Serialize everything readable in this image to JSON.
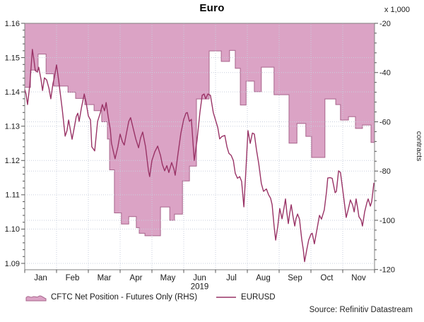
{
  "title": "Euro",
  "source": "Source: Refinitiv Datastream",
  "legend": {
    "area_label": "CFTC Net Position - Futures Only (RHS)",
    "line_label": "EURUSD"
  },
  "colors": {
    "area_fill": "#dba3c5",
    "area_edge": "#a8648c",
    "line": "#993366",
    "grid": "#c9cfdd",
    "axis": "#808080",
    "tick": "#555555",
    "text": "#1a1a1a"
  },
  "axes": {
    "x": {
      "months": [
        "Jan",
        "Feb",
        "Mar",
        "Apr",
        "May",
        "Jun",
        "Jul",
        "Aug",
        "Sep",
        "Oct",
        "Nov"
      ],
      "year": "2019"
    },
    "y_left": {
      "ticks": [
        1.09,
        1.1,
        1.11,
        1.12,
        1.13,
        1.14,
        1.15,
        1.16
      ],
      "min": 1.088,
      "max": 1.16
    },
    "y_right": {
      "unit_label": "x 1,000",
      "axis_label": "contracts",
      "ticks": [
        -20,
        -40,
        -60,
        -80,
        -100,
        -120
      ],
      "min": -120.3,
      "max": -20
    }
  },
  "chart_data": {
    "type": "combo",
    "title": "Euro",
    "x_unit": "months since 2019-01-01 (0 = Jan 1, 11 = Dec 1)",
    "grid": true,
    "legend_position": "bottom",
    "series": [
      {
        "name": "CFTC Net Position - Futures Only (RHS)",
        "type": "area-step",
        "axis": "right",
        "unit": "x 1,000 contracts",
        "interpolation": "step-after",
        "points": [
          [
            0.0,
            -46
          ],
          [
            0.18,
            -39
          ],
          [
            0.42,
            -32.5
          ],
          [
            0.67,
            -40.5
          ],
          [
            0.91,
            -45.5
          ],
          [
            1.36,
            -48
          ],
          [
            1.6,
            -50.5
          ],
          [
            1.89,
            -53
          ],
          [
            2.18,
            -55.5
          ],
          [
            2.42,
            -60
          ],
          [
            2.6,
            -67
          ],
          [
            2.67,
            -79.5
          ],
          [
            2.82,
            -97
          ],
          [
            3.04,
            -101.5
          ],
          [
            3.27,
            -98.5
          ],
          [
            3.51,
            -103
          ],
          [
            3.6,
            -105.3
          ],
          [
            3.78,
            -106.3
          ],
          [
            4.27,
            -94.6
          ],
          [
            4.56,
            -100
          ],
          [
            4.71,
            -97.5
          ],
          [
            4.96,
            -84
          ],
          [
            5.18,
            -78
          ],
          [
            5.4,
            -50.7
          ],
          [
            5.8,
            -31.2
          ],
          [
            6.18,
            -35.5
          ],
          [
            6.44,
            -31
          ],
          [
            6.62,
            -38.3
          ],
          [
            6.78,
            -53.2
          ],
          [
            6.96,
            -43.5
          ],
          [
            7.22,
            -47.8
          ],
          [
            7.44,
            -37.8
          ],
          [
            7.84,
            -49
          ],
          [
            8.31,
            -68.7
          ],
          [
            8.56,
            -60.7
          ],
          [
            8.84,
            -65.9
          ],
          [
            9.02,
            -74.5
          ],
          [
            9.44,
            -50.7
          ],
          [
            9.78,
            -53
          ],
          [
            9.93,
            -59.3
          ],
          [
            10.18,
            -57.9
          ],
          [
            10.4,
            -62.7
          ],
          [
            10.62,
            -61.3
          ],
          [
            10.89,
            -68.4
          ]
        ]
      },
      {
        "name": "EURUSD",
        "type": "line",
        "axis": "left",
        "points": [
          [
            0.0,
            1.1407
          ],
          [
            0.04,
            1.1394
          ],
          [
            0.09,
            1.1363
          ],
          [
            0.16,
            1.1421
          ],
          [
            0.2,
            1.1472
          ],
          [
            0.24,
            1.1524
          ],
          [
            0.29,
            1.1493
          ],
          [
            0.33,
            1.1462
          ],
          [
            0.4,
            1.1458
          ],
          [
            0.44,
            1.1472
          ],
          [
            0.51,
            1.1437
          ],
          [
            0.56,
            1.1404
          ],
          [
            0.62,
            1.1441
          ],
          [
            0.69,
            1.1435
          ],
          [
            0.76,
            1.1411
          ],
          [
            0.82,
            1.138
          ],
          [
            0.89,
            1.1425
          ],
          [
            0.93,
            1.1441
          ],
          [
            1.0,
            1.1479
          ],
          [
            1.07,
            1.1431
          ],
          [
            1.11,
            1.14
          ],
          [
            1.18,
            1.1349
          ],
          [
            1.27,
            1.1271
          ],
          [
            1.33,
            1.1287
          ],
          [
            1.38,
            1.1318
          ],
          [
            1.44,
            1.1287
          ],
          [
            1.49,
            1.1262
          ],
          [
            1.56,
            1.1297
          ],
          [
            1.62,
            1.1328
          ],
          [
            1.67,
            1.1338
          ],
          [
            1.71,
            1.1314
          ],
          [
            1.78,
            1.1352
          ],
          [
            1.87,
            1.1394
          ],
          [
            1.93,
            1.137
          ],
          [
            2.0,
            1.133
          ],
          [
            2.07,
            1.1318
          ],
          [
            2.11,
            1.124
          ],
          [
            2.2,
            1.1228
          ],
          [
            2.29,
            1.1314
          ],
          [
            2.38,
            1.134
          ],
          [
            2.44,
            1.1363
          ],
          [
            2.51,
            1.1345
          ],
          [
            2.56,
            1.1369
          ],
          [
            2.62,
            1.133
          ],
          [
            2.69,
            1.129
          ],
          [
            2.73,
            1.125
          ],
          [
            2.84,
            1.1205
          ],
          [
            2.93,
            1.124
          ],
          [
            3.0,
            1.1277
          ],
          [
            3.07,
            1.1255
          ],
          [
            3.13,
            1.1245
          ],
          [
            3.2,
            1.128
          ],
          [
            3.27,
            1.1314
          ],
          [
            3.33,
            1.1325
          ],
          [
            3.42,
            1.129
          ],
          [
            3.49,
            1.1263
          ],
          [
            3.58,
            1.1237
          ],
          [
            3.64,
            1.1265
          ],
          [
            3.71,
            1.1283
          ],
          [
            3.8,
            1.124
          ],
          [
            3.89,
            1.117
          ],
          [
            3.93,
            1.1153
          ],
          [
            4.0,
            1.12
          ],
          [
            4.09,
            1.1225
          ],
          [
            4.18,
            1.1242
          ],
          [
            4.27,
            1.1215
          ],
          [
            4.33,
            1.1188
          ],
          [
            4.4,
            1.117
          ],
          [
            4.47,
            1.1185
          ],
          [
            4.53,
            1.1165
          ],
          [
            4.62,
            1.1194
          ],
          [
            4.69,
            1.1175
          ],
          [
            4.73,
            1.1157
          ],
          [
            4.82,
            1.122
          ],
          [
            4.91,
            1.128
          ],
          [
            5.0,
            1.132
          ],
          [
            5.07,
            1.1338
          ],
          [
            5.11,
            1.134
          ],
          [
            5.18,
            1.1314
          ],
          [
            5.24,
            1.132
          ],
          [
            5.33,
            1.12
          ],
          [
            5.42,
            1.126
          ],
          [
            5.51,
            1.134
          ],
          [
            5.58,
            1.139
          ],
          [
            5.64,
            1.1394
          ],
          [
            5.69,
            1.138
          ],
          [
            5.76,
            1.1394
          ],
          [
            5.84,
            1.139
          ],
          [
            5.93,
            1.134
          ],
          [
            6.0,
            1.1318
          ],
          [
            6.07,
            1.1296
          ],
          [
            6.13,
            1.1263
          ],
          [
            6.2,
            1.127
          ],
          [
            6.29,
            1.1273
          ],
          [
            6.36,
            1.124
          ],
          [
            6.42,
            1.1221
          ],
          [
            6.49,
            1.1215
          ],
          [
            6.56,
            1.12
          ],
          [
            6.62,
            1.1163
          ],
          [
            6.69,
            1.1148
          ],
          [
            6.76,
            1.1153
          ],
          [
            6.82,
            1.1139
          ],
          [
            6.89,
            1.1065
          ],
          [
            6.96,
            1.118
          ],
          [
            7.02,
            1.1287
          ],
          [
            7.09,
            1.125
          ],
          [
            7.16,
            1.128
          ],
          [
            7.22,
            1.1277
          ],
          [
            7.29,
            1.1229
          ],
          [
            7.36,
            1.119
          ],
          [
            7.44,
            1.1133
          ],
          [
            7.51,
            1.111
          ],
          [
            7.6,
            1.1117
          ],
          [
            7.67,
            1.11
          ],
          [
            7.73,
            1.109
          ],
          [
            7.78,
            1.1071
          ],
          [
            7.84,
            1.101
          ],
          [
            7.89,
            1.0968
          ],
          [
            7.96,
            1.101
          ],
          [
            8.02,
            1.106
          ],
          [
            8.09,
            1.103
          ],
          [
            8.16,
            1.1065
          ],
          [
            8.2,
            1.1088
          ],
          [
            8.24,
            1.105
          ],
          [
            8.29,
            1.1016
          ],
          [
            8.33,
            1.1045
          ],
          [
            8.38,
            1.1071
          ],
          [
            8.44,
            1.1035
          ],
          [
            8.49,
            1.1009
          ],
          [
            8.53,
            1.103
          ],
          [
            8.58,
            1.1044
          ],
          [
            8.64,
            1.1029
          ],
          [
            8.71,
            1.097
          ],
          [
            8.76,
            1.094
          ],
          [
            8.8,
            1.0905
          ],
          [
            8.87,
            1.094
          ],
          [
            8.93,
            1.0968
          ],
          [
            9.0,
            1.0985
          ],
          [
            9.04,
            1.0988
          ],
          [
            9.11,
            1.0957
          ],
          [
            9.18,
            1.0994
          ],
          [
            9.27,
            1.104
          ],
          [
            9.33,
            1.1029
          ],
          [
            9.42,
            1.1056
          ],
          [
            9.49,
            1.111
          ],
          [
            9.53,
            1.1149
          ],
          [
            9.6,
            1.115
          ],
          [
            9.67,
            1.1148
          ],
          [
            9.76,
            1.1106
          ],
          [
            9.8,
            1.111
          ],
          [
            9.87,
            1.117
          ],
          [
            9.93,
            1.1165
          ],
          [
            10.02,
            1.11
          ],
          [
            10.11,
            1.1034
          ],
          [
            10.18,
            1.106
          ],
          [
            10.24,
            1.1085
          ],
          [
            10.31,
            1.107
          ],
          [
            10.36,
            1.105
          ],
          [
            10.42,
            1.1088
          ],
          [
            10.47,
            1.106
          ],
          [
            10.51,
            1.1036
          ],
          [
            10.58,
            1.1026
          ],
          [
            10.62,
            1.1009
          ],
          [
            10.69,
            1.105
          ],
          [
            10.76,
            1.1077
          ],
          [
            10.8,
            1.1088
          ],
          [
            10.87,
            1.1067
          ],
          [
            10.91,
            1.108
          ],
          [
            10.98,
            1.1135
          ]
        ]
      }
    ]
  }
}
